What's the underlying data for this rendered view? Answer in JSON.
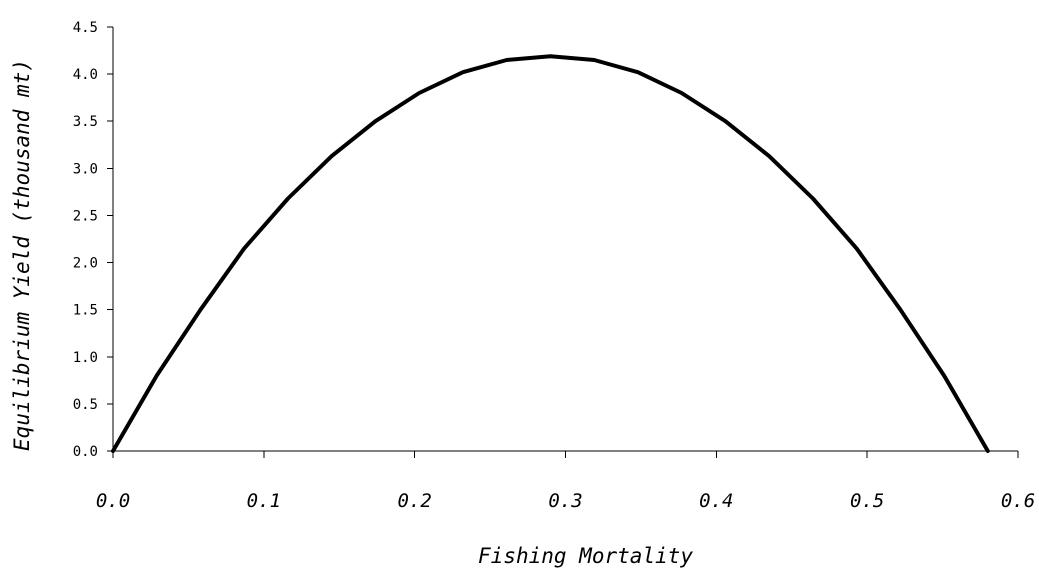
{
  "chart_data": {
    "type": "line",
    "xlabel": "Fishing Mortality",
    "ylabel": "Equilibrium Yield (thousand mt)",
    "xlim": [
      0.0,
      0.6
    ],
    "ylim": [
      0.0,
      4.5
    ],
    "x_ticks": [
      "0.0",
      "0.1",
      "0.2",
      "0.3",
      "0.4",
      "0.5",
      "0.6"
    ],
    "y_ticks": [
      "0.0",
      "0.5",
      "1.0",
      "1.5",
      "2.0",
      "2.5",
      "3.0",
      "3.5",
      "4.0",
      "4.5"
    ],
    "grid": false,
    "legend": "none",
    "line_color": "#000000",
    "series": [
      {
        "x": [
          0.0,
          0.029,
          0.058,
          0.087,
          0.116,
          0.145,
          0.174,
          0.203,
          0.232,
          0.261,
          0.29,
          0.319,
          0.348,
          0.377,
          0.406,
          0.435,
          0.464,
          0.493,
          0.522,
          0.551,
          0.58
        ],
        "values": [
          0.0,
          0.8,
          1.5,
          2.15,
          2.68,
          3.13,
          3.5,
          3.8,
          4.02,
          4.15,
          4.19,
          4.15,
          4.02,
          3.8,
          3.5,
          3.13,
          2.68,
          2.15,
          1.5,
          0.8,
          0.0
        ]
      }
    ]
  }
}
